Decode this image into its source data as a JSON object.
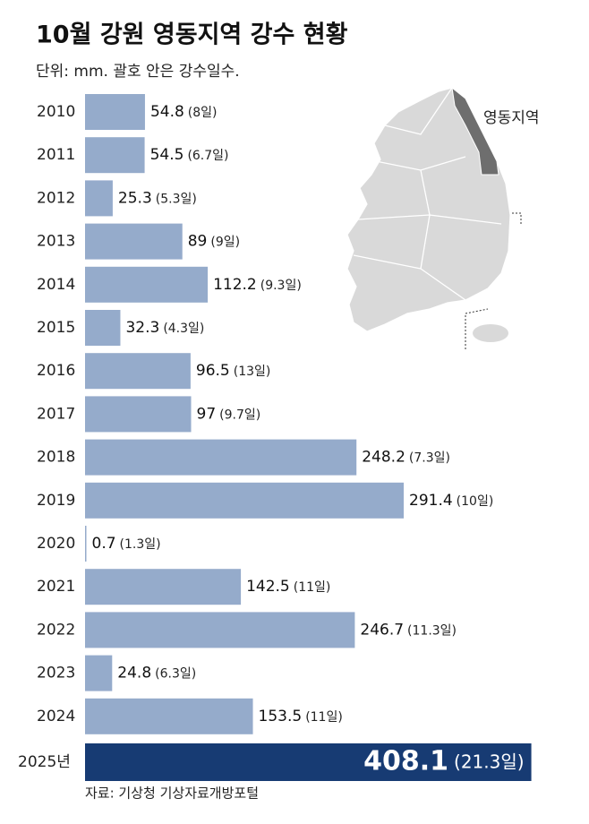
{
  "chart_data": {
    "type": "bar",
    "orientation": "horizontal",
    "title": "10월 강원 영동지역 강수 현황",
    "subtitle": "단위: mm. 괄호 안은 강수일수.",
    "source": "자료: 기상청 기상자료개방포털",
    "map_label": "영동지역",
    "categories": [
      "2010",
      "2011",
      "2012",
      "2013",
      "2014",
      "2015",
      "2016",
      "2017",
      "2018",
      "2019",
      "2020",
      "2021",
      "2022",
      "2023",
      "2024",
      "2025년"
    ],
    "values": [
      54.8,
      54.5,
      25.3,
      89,
      112.2,
      32.3,
      96.5,
      97,
      248.2,
      291.4,
      0.7,
      142.5,
      246.7,
      24.8,
      153.5,
      408.1
    ],
    "day_labels": [
      "(8일)",
      "(6.7일)",
      "(5.3일)",
      "(9일)",
      "(9.3일)",
      "(4.3일)",
      "(13일)",
      "(9.7일)",
      "(7.3일)",
      "(10일)",
      "(1.3일)",
      "(11일)",
      "(11.3일)",
      "(6.3일)",
      "(11일)",
      "(21.3일)"
    ],
    "color": "#95abcb",
    "highlight_color": "#173b73"
  }
}
